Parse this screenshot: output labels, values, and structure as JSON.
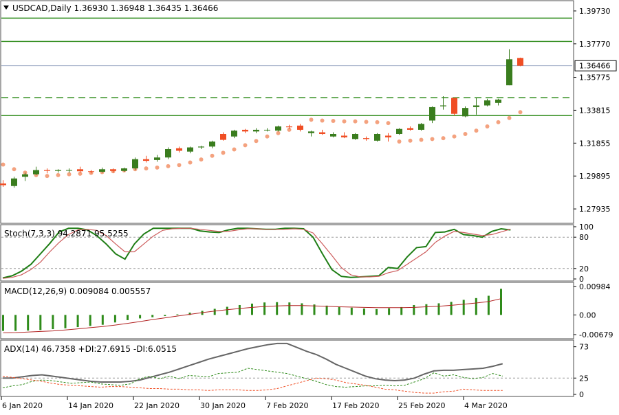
{
  "colors": {
    "bull": "#3a7d1e",
    "bear": "#f04e24",
    "psar": "#f4a27f",
    "level": "#2e8b1a",
    "bid_line": "#9aa7c2",
    "stoch_main": "#1e7d14",
    "stoch_signal": "#cd5c5c",
    "macd_hist": "#2e8b1a",
    "macd_signal": "#b22222",
    "adx_line": "#666666",
    "plus_di": "#2e8b1a",
    "minus_di": "#f04e24",
    "frame": "#4d4d4d"
  },
  "main_panel": {
    "header": "USDCAD,Daily  1.36930 1.36948 1.36435 1.36466",
    "last_price_label": "1.36466"
  },
  "stoch_panel": {
    "header": "Stoch(7,3,3) 94.2871 95.5255"
  },
  "macd_panel": {
    "header": "MACD(12,26,9) 0.009084 0.005557"
  },
  "adx_panel": {
    "header": "ADX(14) 46.7358 +DI:27.6915 -DI:6.0515"
  },
  "x_axis": {
    "labels": [
      "6 Jan 2020",
      "14 Jan 2020",
      "22 Jan 2020",
      "30 Jan 2020",
      "7 Feb 2020",
      "17 Feb 2020",
      "25 Feb 2020",
      "4 Mar 2020"
    ]
  },
  "chart_data": [
    {
      "type": "candlestick",
      "title": "USDCAD,Daily",
      "symbol": "USDCAD",
      "timeframe": "Daily",
      "last_bar": {
        "open": 1.3693,
        "high": 1.36948,
        "low": 1.36435,
        "close": 1.36466
      },
      "last_price": 1.36466,
      "y_ticks": [
        1.3973,
        1.3777,
        1.35775,
        1.33815,
        1.31855,
        1.29895,
        1.27935
      ],
      "ylim": [
        1.2712,
        1.403
      ],
      "horizontal_levels": [
        {
          "value": 1.393,
          "style": "solid"
        },
        {
          "value": 1.3791,
          "style": "solid"
        },
        {
          "value": 1.3456,
          "style": "dashed"
        },
        {
          "value": 1.335,
          "style": "solid"
        }
      ],
      "candles": [
        {
          "o": 1.2945,
          "h": 1.2965,
          "l": 1.2925,
          "c": 1.2935
        },
        {
          "o": 1.293,
          "h": 1.2985,
          "l": 1.292,
          "c": 1.2975
        },
        {
          "o": 1.2985,
          "h": 1.301,
          "l": 1.296,
          "c": 1.3
        },
        {
          "o": 1.3,
          "h": 1.3045,
          "l": 1.2995,
          "c": 1.3025
        },
        {
          "o": 1.3025,
          "h": 1.3035,
          "l": 1.3005,
          "c": 1.302
        },
        {
          "o": 1.302,
          "h": 1.303,
          "l": 1.301,
          "c": 1.3025
        },
        {
          "o": 1.3022,
          "h": 1.3035,
          "l": 1.301,
          "c": 1.3025
        },
        {
          "o": 1.303,
          "h": 1.3045,
          "l": 1.301,
          "c": 1.3018
        },
        {
          "o": 1.3018,
          "h": 1.3025,
          "l": 1.3005,
          "c": 1.3015
        },
        {
          "o": 1.3015,
          "h": 1.304,
          "l": 1.301,
          "c": 1.303
        },
        {
          "o": 1.303,
          "h": 1.3035,
          "l": 1.301,
          "c": 1.302
        },
        {
          "o": 1.302,
          "h": 1.304,
          "l": 1.3015,
          "c": 1.3035
        },
        {
          "o": 1.3035,
          "h": 1.31,
          "l": 1.3025,
          "c": 1.309
        },
        {
          "o": 1.309,
          "h": 1.311,
          "l": 1.307,
          "c": 1.308
        },
        {
          "o": 1.3085,
          "h": 1.3115,
          "l": 1.3075,
          "c": 1.31
        },
        {
          "o": 1.31,
          "h": 1.316,
          "l": 1.309,
          "c": 1.315
        },
        {
          "o": 1.3155,
          "h": 1.3165,
          "l": 1.313,
          "c": 1.314
        },
        {
          "o": 1.3135,
          "h": 1.3165,
          "l": 1.3125,
          "c": 1.316
        },
        {
          "o": 1.316,
          "h": 1.317,
          "l": 1.315,
          "c": 1.3165
        },
        {
          "o": 1.3165,
          "h": 1.32,
          "l": 1.3155,
          "c": 1.3195
        },
        {
          "o": 1.324,
          "h": 1.325,
          "l": 1.32,
          "c": 1.3205
        },
        {
          "o": 1.3225,
          "h": 1.3265,
          "l": 1.3215,
          "c": 1.326
        },
        {
          "o": 1.3265,
          "h": 1.327,
          "l": 1.3245,
          "c": 1.3255
        },
        {
          "o": 1.3255,
          "h": 1.3275,
          "l": 1.3245,
          "c": 1.3265
        },
        {
          "o": 1.3265,
          "h": 1.3275,
          "l": 1.3255,
          "c": 1.3265
        },
        {
          "o": 1.326,
          "h": 1.329,
          "l": 1.3255,
          "c": 1.3285
        },
        {
          "o": 1.3285,
          "h": 1.3295,
          "l": 1.327,
          "c": 1.328
        },
        {
          "o": 1.329,
          "h": 1.33,
          "l": 1.3255,
          "c": 1.3265
        },
        {
          "o": 1.3245,
          "h": 1.326,
          "l": 1.3225,
          "c": 1.3255
        },
        {
          "o": 1.325,
          "h": 1.3265,
          "l": 1.3235,
          "c": 1.324
        },
        {
          "o": 1.3225,
          "h": 1.325,
          "l": 1.322,
          "c": 1.324
        },
        {
          "o": 1.323,
          "h": 1.325,
          "l": 1.3215,
          "c": 1.322
        },
        {
          "o": 1.321,
          "h": 1.3245,
          "l": 1.3205,
          "c": 1.324
        },
        {
          "o": 1.3215,
          "h": 1.3225,
          "l": 1.32,
          "c": 1.321
        },
        {
          "o": 1.32,
          "h": 1.3245,
          "l": 1.3195,
          "c": 1.324
        },
        {
          "o": 1.323,
          "h": 1.3245,
          "l": 1.3195,
          "c": 1.322
        },
        {
          "o": 1.324,
          "h": 1.3275,
          "l": 1.3235,
          "c": 1.327
        },
        {
          "o": 1.3275,
          "h": 1.3285,
          "l": 1.326,
          "c": 1.3265
        },
        {
          "o": 1.3265,
          "h": 1.3305,
          "l": 1.326,
          "c": 1.33
        },
        {
          "o": 1.332,
          "h": 1.3405,
          "l": 1.3305,
          "c": 1.34
        },
        {
          "o": 1.3405,
          "h": 1.3465,
          "l": 1.3385,
          "c": 1.341
        },
        {
          "o": 1.3455,
          "h": 1.3455,
          "l": 1.335,
          "c": 1.336
        },
        {
          "o": 1.3345,
          "h": 1.3405,
          "l": 1.334,
          "c": 1.3395
        },
        {
          "o": 1.34,
          "h": 1.3455,
          "l": 1.3355,
          "c": 1.341
        },
        {
          "o": 1.341,
          "h": 1.345,
          "l": 1.3405,
          "c": 1.344
        },
        {
          "o": 1.3425,
          "h": 1.345,
          "l": 1.341,
          "c": 1.3445
        },
        {
          "o": 1.353,
          "h": 1.3745,
          "l": 1.353,
          "c": 1.3685
        },
        {
          "o": 1.3693,
          "h": 1.36948,
          "l": 1.36435,
          "c": 1.36466
        }
      ],
      "parabolic_sar": [
        1.3058,
        1.303,
        1.301,
        1.2995,
        1.299,
        1.2995,
        1.3,
        1.3003,
        1.3008,
        1.3013,
        1.3018,
        1.3023,
        1.303,
        1.3035,
        1.304,
        1.3048,
        1.3055,
        1.307,
        1.3088,
        1.311,
        1.3128,
        1.3148,
        1.3173,
        1.3198,
        1.3225,
        1.3245,
        1.3265,
        1.3275,
        1.3325,
        1.332,
        1.3318,
        1.3315,
        1.3315,
        1.3312,
        1.331,
        1.3305,
        1.3195,
        1.32,
        1.3205,
        1.321,
        1.3215,
        1.3225,
        1.324,
        1.326,
        1.3285,
        1.331,
        1.3335,
        1.337
      ]
    },
    {
      "type": "line",
      "title": "Stoch(7,3,3)",
      "current": {
        "main": 94.2871,
        "signal": 95.5255
      },
      "y_ticks": [
        100,
        80,
        20,
        0
      ],
      "levels": [
        80,
        20
      ],
      "ylim": [
        0,
        100
      ],
      "series": [
        {
          "name": "Main",
          "values": [
            2,
            6,
            15,
            28,
            48,
            68,
            90,
            97,
            97,
            94,
            83,
            67,
            48,
            38,
            67,
            86,
            97,
            97,
            97,
            97,
            97,
            92,
            90,
            89,
            94,
            97,
            97,
            96,
            95,
            95,
            97,
            97,
            96,
            80,
            48,
            18,
            5,
            3,
            4,
            5,
            6,
            22,
            20,
            42,
            60,
            62,
            89,
            90,
            95,
            85,
            83,
            80,
            91,
            96,
            94
          ]
        },
        {
          "name": "Signal",
          "values": [
            1,
            3,
            8,
            18,
            32,
            52,
            70,
            85,
            94,
            95,
            93,
            83,
            67,
            52,
            52,
            67,
            82,
            93,
            96,
            97,
            97,
            95,
            93,
            91,
            91,
            94,
            96,
            96,
            95,
            95,
            95,
            96,
            95,
            88,
            67,
            45,
            22,
            8,
            4,
            4,
            5,
            12,
            16,
            28,
            40,
            52,
            70,
            82,
            91,
            89,
            86,
            83,
            85,
            90,
            95.5
          ]
        }
      ]
    },
    {
      "type": "bar",
      "title": "MACD(12,26,9)",
      "current": {
        "macd": 0.009084,
        "signal": 0.005557
      },
      "y_ticks": [
        0.00984,
        0.0,
        -0.00679
      ],
      "ylim": [
        -0.0075,
        0.0105
      ],
      "series": [
        {
          "name": "MACD",
          "values": [
            -0.0055,
            -0.0055,
            -0.0054,
            -0.0052,
            -0.0049,
            -0.0046,
            -0.0042,
            -0.0038,
            -0.0034,
            -0.0026,
            -0.0018,
            -0.0012,
            -0.0008,
            -0.0004,
            0.0002,
            0.0008,
            0.0014,
            0.0021,
            0.0028,
            0.0034,
            0.0039,
            0.0043,
            0.0044,
            0.0043,
            0.004,
            0.0036,
            0.0032,
            0.0028,
            0.0025,
            0.0022,
            0.002,
            0.0023,
            0.0027,
            0.0034,
            0.0037,
            0.004,
            0.0045,
            0.0052,
            0.0058,
            0.0066,
            0.009
          ]
        },
        {
          "name": "Signal",
          "values": [
            -0.0062,
            -0.0061,
            -0.0059,
            -0.0057,
            -0.0055,
            -0.0052,
            -0.0048,
            -0.0044,
            -0.004,
            -0.0035,
            -0.0029,
            -0.0023,
            -0.0016,
            -0.001,
            -0.0004,
            0.0002,
            0.0008,
            0.0013,
            0.0018,
            0.0022,
            0.0026,
            0.0029,
            0.0031,
            0.0032,
            0.0032,
            0.0031,
            0.003,
            0.0028,
            0.0027,
            0.0026,
            0.0025,
            0.0025,
            0.0025,
            0.0026,
            0.0028,
            0.003,
            0.0033,
            0.0037,
            0.0041,
            0.0046,
            0.0056
          ]
        }
      ]
    },
    {
      "type": "line",
      "title": "ADX(14)",
      "current": {
        "adx": 46.7358,
        "plus_di": 27.6915,
        "minus_di": 6.0515
      },
      "y_ticks": [
        73,
        25,
        0
      ],
      "levels": [
        25
      ],
      "ylim": [
        0,
        80
      ],
      "series": [
        {
          "name": "ADX",
          "values": [
            25,
            25,
            27,
            29,
            30,
            28,
            26,
            24,
            22,
            20,
            19,
            19,
            19,
            20,
            22,
            26,
            30,
            34,
            39,
            44,
            49,
            54,
            58,
            62,
            66,
            70,
            73,
            76,
            78,
            78,
            72,
            66,
            61,
            54,
            46,
            40,
            34,
            28,
            24,
            22,
            21,
            22,
            25,
            31,
            36,
            37,
            37,
            38,
            39,
            40,
            43,
            47
          ]
        },
        {
          "name": "+DI",
          "values": [
            10,
            13,
            15,
            20,
            22,
            21,
            19,
            17,
            18,
            19,
            16,
            15,
            14,
            16,
            24,
            28,
            24,
            28,
            24,
            29,
            28,
            27,
            32,
            33,
            34,
            40,
            38,
            36,
            34,
            32,
            28,
            24,
            20,
            15,
            12,
            11,
            12,
            13,
            13,
            14,
            13,
            14,
            19,
            24,
            33,
            28,
            30,
            26,
            24,
            26,
            32,
            28
          ]
        },
        {
          "name": "-DI",
          "values": [
            28,
            26,
            24,
            22,
            20,
            17,
            15,
            14,
            13,
            12,
            11,
            12,
            12,
            11,
            10,
            9,
            9,
            8,
            8,
            7,
            7,
            6,
            7,
            7,
            7,
            6,
            6,
            7,
            9,
            13,
            17,
            21,
            25,
            24,
            22,
            18,
            16,
            14,
            11,
            8,
            7,
            5,
            3,
            2,
            2,
            4,
            5,
            8,
            7,
            6,
            6,
            6
          ]
        }
      ]
    }
  ]
}
